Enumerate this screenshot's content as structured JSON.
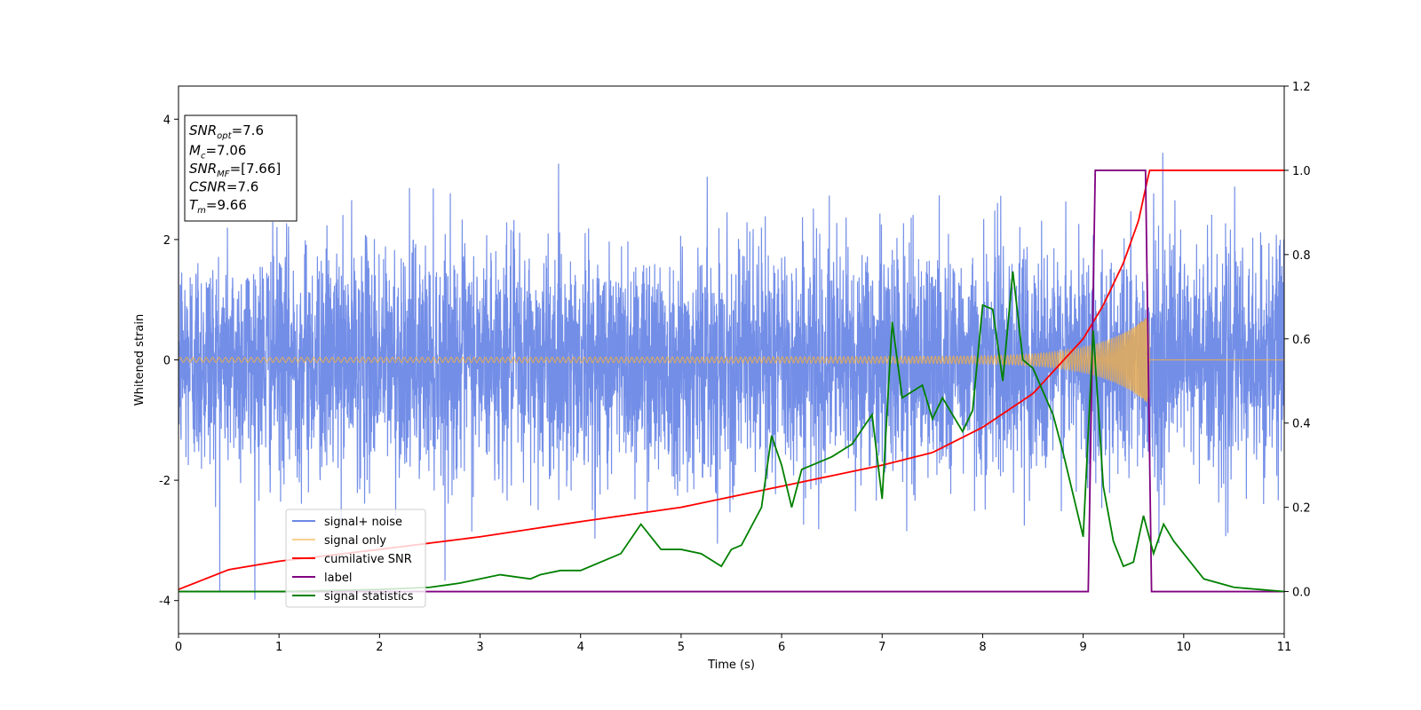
{
  "chart_data": {
    "type": "line",
    "xlabel": "Time (s)",
    "ylabel": "Whitened strain",
    "xlim": [
      0,
      11
    ],
    "ylim_left": [
      -4.55,
      4.55
    ],
    "ylim_right": [
      -0.1,
      1.2
    ],
    "x_ticks": [
      "0",
      "1",
      "2",
      "3",
      "4",
      "5",
      "6",
      "7",
      "8",
      "9",
      "10",
      "11"
    ],
    "y_left_ticks": [
      "-4",
      "-2",
      "0",
      "2",
      "4"
    ],
    "y_right_ticks": [
      "0.0",
      "0.2",
      "0.4",
      "0.6",
      "0.8",
      "1.0",
      "1.2"
    ],
    "legend_position": "lower-left",
    "series": [
      {
        "name": "signal+ noise",
        "axis": "left",
        "color": "#6b88e6",
        "kind": "noise",
        "std": 0.95,
        "min_approx": -4.15,
        "max_approx": 4.15
      },
      {
        "name": "signal only",
        "axis": "left",
        "color": "#f5b041",
        "kind": "chirp",
        "amplitude_start": 0.04,
        "amplitude_peak": 0.7,
        "merger_time": 9.66
      },
      {
        "name": "cumilative SNR",
        "axis": "right",
        "color": "#ff0000",
        "x": [
          0,
          0.5,
          1,
          2,
          3,
          4,
          5,
          6,
          7,
          7.5,
          8,
          8.5,
          9,
          9.2,
          9.4,
          9.55,
          9.66,
          11
        ],
        "y": [
          0.005,
          0.052,
          0.072,
          0.1,
          0.13,
          0.166,
          0.2,
          0.25,
          0.3,
          0.33,
          0.39,
          0.47,
          0.6,
          0.68,
          0.78,
          0.88,
          1.0,
          1.0
        ]
      },
      {
        "name": "label",
        "axis": "right",
        "color": "#800080",
        "x": [
          0,
          9.05,
          9.12,
          9.62,
          9.68,
          11
        ],
        "y": [
          0,
          0,
          1,
          1,
          0,
          0
        ]
      },
      {
        "name": "signal statistics",
        "axis": "right",
        "color": "#008000",
        "x": [
          0,
          1,
          2,
          2.5,
          2.8,
          3,
          3.2,
          3.5,
          3.6,
          3.8,
          4,
          4.2,
          4.4,
          4.6,
          4.7,
          4.8,
          5,
          5.2,
          5.4,
          5.5,
          5.6,
          5.8,
          5.9,
          6.0,
          6.1,
          6.2,
          6.3,
          6.5,
          6.7,
          6.9,
          7.0,
          7.1,
          7.2,
          7.4,
          7.5,
          7.6,
          7.8,
          7.9,
          8.0,
          8.1,
          8.2,
          8.3,
          8.4,
          8.5,
          8.7,
          8.8,
          9.0,
          9.1,
          9.2,
          9.3,
          9.4,
          9.5,
          9.6,
          9.7,
          9.8,
          9.9,
          10.0,
          10.2,
          10.5,
          11
        ],
        "y": [
          0,
          0,
          0.005,
          0.01,
          0.02,
          0.03,
          0.04,
          0.03,
          0.04,
          0.05,
          0.05,
          0.07,
          0.09,
          0.16,
          0.13,
          0.1,
          0.1,
          0.09,
          0.06,
          0.1,
          0.11,
          0.2,
          0.37,
          0.3,
          0.2,
          0.29,
          0.3,
          0.32,
          0.35,
          0.42,
          0.22,
          0.64,
          0.46,
          0.49,
          0.41,
          0.46,
          0.38,
          0.43,
          0.68,
          0.67,
          0.5,
          0.76,
          0.55,
          0.53,
          0.42,
          0.33,
          0.13,
          0.62,
          0.25,
          0.12,
          0.06,
          0.07,
          0.18,
          0.09,
          0.16,
          0.12,
          0.09,
          0.03,
          0.01,
          0
        ]
      }
    ]
  },
  "info_box": {
    "lines": [
      {
        "var": "SNR",
        "sub": "opt",
        "value": "=7.6"
      },
      {
        "var": "M",
        "sub": "c",
        "value": "=7.06"
      },
      {
        "var": "SNR",
        "sub": "MF",
        "value": "=[7.66]"
      },
      {
        "var": "CSNR",
        "sub": "",
        "value": "=7.6"
      },
      {
        "var": "T",
        "sub": "m",
        "value": "=9.66"
      }
    ]
  }
}
